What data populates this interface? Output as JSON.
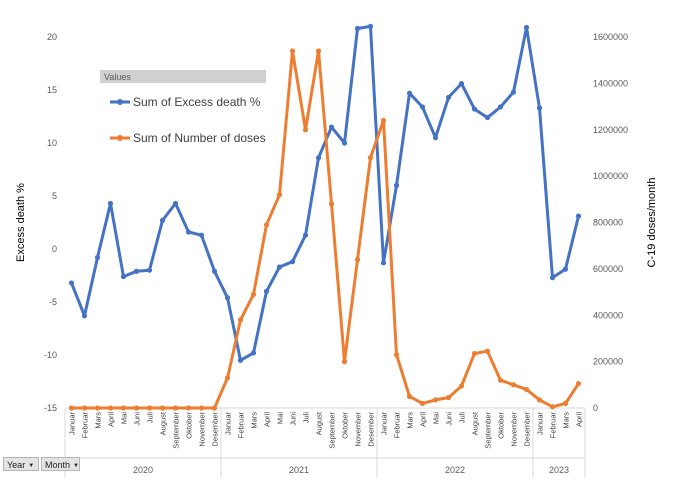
{
  "chart_data": {
    "type": "line",
    "ylabel": "Excess death %",
    "y2label": "C-19 doses/month",
    "ylim": [
      -15,
      20
    ],
    "y2lim": [
      0,
      1600000
    ],
    "y_ticks": [
      "-15",
      "-10",
      "-5",
      "0",
      "5",
      "10",
      "15",
      "20"
    ],
    "y2_ticks": [
      "0",
      "200000",
      "400000",
      "600000",
      "800000",
      "1000000",
      "1200000",
      "1400000",
      "1600000"
    ],
    "legend_header": "Values",
    "legend_position": "top-left",
    "grid": false,
    "years": [
      {
        "label": "2020",
        "months": 12
      },
      {
        "label": "2021",
        "months": 12
      },
      {
        "label": "2022",
        "months": 12
      },
      {
        "label": "2023",
        "months": 4
      }
    ],
    "months": [
      "Januar",
      "Februar",
      "Mars",
      "April",
      "Mai",
      "Juni",
      "Juli",
      "August",
      "September",
      "Oktober",
      "November",
      "Desember",
      "Januar",
      "Februar",
      "Mars",
      "April",
      "Mai",
      "Juni",
      "Juli",
      "August",
      "September",
      "Oktober",
      "November",
      "Desember",
      "Januar",
      "Februar",
      "Mars",
      "April",
      "Mai",
      "Juni",
      "Juli",
      "August",
      "September",
      "Oktober",
      "November",
      "Desember",
      "Januar",
      "Februar",
      "Mars",
      "April"
    ],
    "series": [
      {
        "name": "Sum of Excess death %",
        "axis": "left",
        "color": "#4472c4",
        "values": [
          -3.2,
          -6.3,
          -0.8,
          4.3,
          -2.6,
          -2.1,
          -2.0,
          2.7,
          4.3,
          1.6,
          1.3,
          -2.1,
          -4.6,
          -10.5,
          -9.8,
          -4.0,
          -1.7,
          -1.2,
          1.3,
          8.6,
          11.5,
          10.0,
          20.8,
          21.0,
          -1.3,
          6.0,
          14.7,
          13.4,
          10.5,
          14.3,
          15.6,
          13.2,
          12.4,
          13.4,
          14.8,
          20.9,
          13.3,
          -2.7,
          -1.9,
          3.1
        ]
      },
      {
        "name": "Sum of Number of doses",
        "axis": "right",
        "color": "#ed7d31",
        "values": [
          0,
          0,
          0,
          0,
          0,
          0,
          0,
          0,
          0,
          0,
          0,
          0,
          130000,
          380000,
          490000,
          790000,
          920000,
          1540000,
          1200000,
          1540000,
          880000,
          200000,
          640000,
          1080000,
          1240000,
          230000,
          50000,
          20000,
          35000,
          45000,
          95000,
          235000,
          245000,
          120000,
          100000,
          80000,
          35000,
          5000,
          20000,
          105000
        ]
      }
    ]
  },
  "pivot_buttons": {
    "year": "Year",
    "month": "Month"
  }
}
